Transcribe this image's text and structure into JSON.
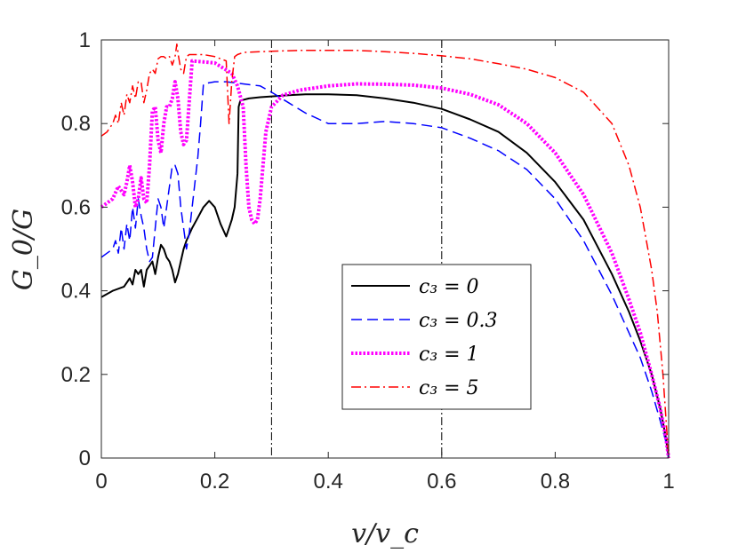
{
  "chart_data": {
    "type": "line",
    "title": "",
    "xlabel": "v/v_c",
    "ylabel": "G_0/G",
    "xlim": [
      0,
      1
    ],
    "ylim": [
      0,
      1
    ],
    "xticks": [
      0,
      0.2,
      0.4,
      0.6,
      0.8,
      1
    ],
    "yticks": [
      0,
      0.2,
      0.4,
      0.6,
      0.8,
      1
    ],
    "xtick_labels": [
      "0",
      "0.2",
      "0.4",
      "0.6",
      "0.8",
      "1"
    ],
    "ytick_labels": [
      "0",
      "0.2",
      "0.4",
      "0.6",
      "0.8",
      "1"
    ],
    "grid": false,
    "legend_position": "center-right",
    "vertical_reference_lines": [
      0.3,
      0.6
    ],
    "series": [
      {
        "name": "c_3 = 0",
        "legend_label": "c₃ = 0",
        "color": "#000000",
        "dash": "",
        "width": 2,
        "x": [
          0,
          0.02,
          0.04,
          0.05,
          0.055,
          0.06,
          0.065,
          0.07,
          0.075,
          0.08,
          0.085,
          0.09,
          0.095,
          0.1,
          0.105,
          0.11,
          0.115,
          0.12,
          0.125,
          0.13,
          0.135,
          0.14,
          0.145,
          0.15,
          0.16,
          0.17,
          0.18,
          0.19,
          0.2,
          0.21,
          0.22,
          0.225,
          0.23,
          0.235,
          0.24,
          0.242,
          0.245,
          0.26,
          0.28,
          0.3,
          0.33,
          0.36,
          0.4,
          0.45,
          0.5,
          0.55,
          0.6,
          0.65,
          0.7,
          0.75,
          0.8,
          0.85,
          0.9,
          0.93,
          0.95,
          0.97,
          0.985,
          0.995,
          1.0
        ],
        "y": [
          0.385,
          0.4,
          0.41,
          0.43,
          0.415,
          0.45,
          0.44,
          0.45,
          0.41,
          0.45,
          0.46,
          0.47,
          0.44,
          0.48,
          0.51,
          0.5,
          0.48,
          0.47,
          0.45,
          0.42,
          0.44,
          0.47,
          0.5,
          0.52,
          0.55,
          0.575,
          0.6,
          0.615,
          0.6,
          0.56,
          0.53,
          0.55,
          0.57,
          0.6,
          0.68,
          0.84,
          0.855,
          0.86,
          0.863,
          0.865,
          0.868,
          0.87,
          0.87,
          0.868,
          0.86,
          0.85,
          0.835,
          0.81,
          0.78,
          0.73,
          0.66,
          0.57,
          0.44,
          0.35,
          0.28,
          0.2,
          0.12,
          0.05,
          0.0
        ]
      },
      {
        "name": "c_3 = 0.3",
        "legend_label": "c₃ = 0.3",
        "color": "#0000ff",
        "dash": "12,6",
        "width": 1.5,
        "x": [
          0,
          0.01,
          0.02,
          0.025,
          0.03,
          0.035,
          0.04,
          0.045,
          0.05,
          0.055,
          0.06,
          0.065,
          0.07,
          0.075,
          0.08,
          0.085,
          0.09,
          0.095,
          0.1,
          0.105,
          0.11,
          0.115,
          0.12,
          0.125,
          0.13,
          0.135,
          0.14,
          0.145,
          0.15,
          0.155,
          0.16,
          0.165,
          0.17,
          0.175,
          0.18,
          0.2,
          0.22,
          0.25,
          0.28,
          0.3,
          0.33,
          0.36,
          0.4,
          0.45,
          0.5,
          0.55,
          0.6,
          0.65,
          0.7,
          0.75,
          0.8,
          0.85,
          0.9,
          0.93,
          0.95,
          0.97,
          0.985,
          0.995,
          1.0
        ],
        "y": [
          0.48,
          0.49,
          0.5,
          0.52,
          0.49,
          0.55,
          0.5,
          0.56,
          0.52,
          0.6,
          0.55,
          0.62,
          0.58,
          0.55,
          0.5,
          0.47,
          0.48,
          0.55,
          0.62,
          0.6,
          0.55,
          0.6,
          0.65,
          0.7,
          0.7,
          0.68,
          0.6,
          0.55,
          0.5,
          0.54,
          0.6,
          0.66,
          0.72,
          0.8,
          0.895,
          0.9,
          0.9,
          0.895,
          0.89,
          0.875,
          0.85,
          0.825,
          0.8,
          0.8,
          0.805,
          0.8,
          0.79,
          0.765,
          0.735,
          0.69,
          0.62,
          0.52,
          0.39,
          0.3,
          0.24,
          0.16,
          0.09,
          0.04,
          0.0
        ]
      },
      {
        "name": "c_3 = 1",
        "legend_label": "c₃ = 1",
        "color": "#ff00ff",
        "dash": "2.5,2",
        "width": 4,
        "x": [
          0,
          0.01,
          0.02,
          0.03,
          0.04,
          0.045,
          0.05,
          0.055,
          0.06,
          0.065,
          0.07,
          0.075,
          0.08,
          0.085,
          0.09,
          0.095,
          0.1,
          0.105,
          0.11,
          0.115,
          0.12,
          0.125,
          0.13,
          0.135,
          0.14,
          0.145,
          0.15,
          0.16,
          0.2,
          0.23,
          0.24,
          0.25,
          0.255,
          0.26,
          0.265,
          0.27,
          0.275,
          0.28,
          0.285,
          0.29,
          0.3,
          0.32,
          0.35,
          0.4,
          0.45,
          0.5,
          0.55,
          0.6,
          0.65,
          0.7,
          0.75,
          0.8,
          0.85,
          0.9,
          0.93,
          0.95,
          0.97,
          0.985,
          0.995,
          1.0
        ],
        "y": [
          0.6,
          0.61,
          0.62,
          0.65,
          0.63,
          0.66,
          0.7,
          0.66,
          0.6,
          0.62,
          0.67,
          0.62,
          0.61,
          0.7,
          0.83,
          0.84,
          0.76,
          0.73,
          0.8,
          0.84,
          0.84,
          0.86,
          0.9,
          0.86,
          0.78,
          0.75,
          0.76,
          0.95,
          0.945,
          0.92,
          0.89,
          0.84,
          0.7,
          0.6,
          0.57,
          0.56,
          0.57,
          0.62,
          0.7,
          0.78,
          0.84,
          0.868,
          0.88,
          0.89,
          0.895,
          0.894,
          0.892,
          0.885,
          0.87,
          0.845,
          0.8,
          0.73,
          0.63,
          0.49,
          0.38,
          0.3,
          0.2,
          0.12,
          0.05,
          0.0
        ]
      },
      {
        "name": "c_3 = 5",
        "legend_label": "c₃ = 5",
        "color": "#ff0000",
        "dash": "11,4,2,4",
        "width": 1.5,
        "x": [
          0,
          0.01,
          0.02,
          0.025,
          0.03,
          0.035,
          0.04,
          0.045,
          0.05,
          0.055,
          0.06,
          0.065,
          0.07,
          0.075,
          0.08,
          0.085,
          0.09,
          0.095,
          0.1,
          0.105,
          0.11,
          0.115,
          0.12,
          0.125,
          0.13,
          0.133,
          0.136,
          0.14,
          0.145,
          0.15,
          0.155,
          0.16,
          0.18,
          0.2,
          0.22,
          0.225,
          0.23,
          0.235,
          0.24,
          0.25,
          0.3,
          0.35,
          0.4,
          0.45,
          0.5,
          0.55,
          0.6,
          0.65,
          0.7,
          0.75,
          0.8,
          0.85,
          0.9,
          0.93,
          0.95,
          0.97,
          0.98,
          0.99,
          0.995,
          1.0
        ],
        "y": [
          0.77,
          0.78,
          0.8,
          0.82,
          0.8,
          0.85,
          0.82,
          0.87,
          0.85,
          0.89,
          0.86,
          0.9,
          0.9,
          0.85,
          0.88,
          0.92,
          0.93,
          0.92,
          0.955,
          0.96,
          0.96,
          0.955,
          0.96,
          0.94,
          0.96,
          0.99,
          0.96,
          0.93,
          0.92,
          0.96,
          0.965,
          0.965,
          0.965,
          0.96,
          0.95,
          0.8,
          0.9,
          0.96,
          0.965,
          0.97,
          0.973,
          0.975,
          0.975,
          0.975,
          0.972,
          0.968,
          0.962,
          0.955,
          0.943,
          0.93,
          0.91,
          0.875,
          0.8,
          0.7,
          0.6,
          0.45,
          0.35,
          0.2,
          0.1,
          0.0
        ]
      }
    ]
  }
}
